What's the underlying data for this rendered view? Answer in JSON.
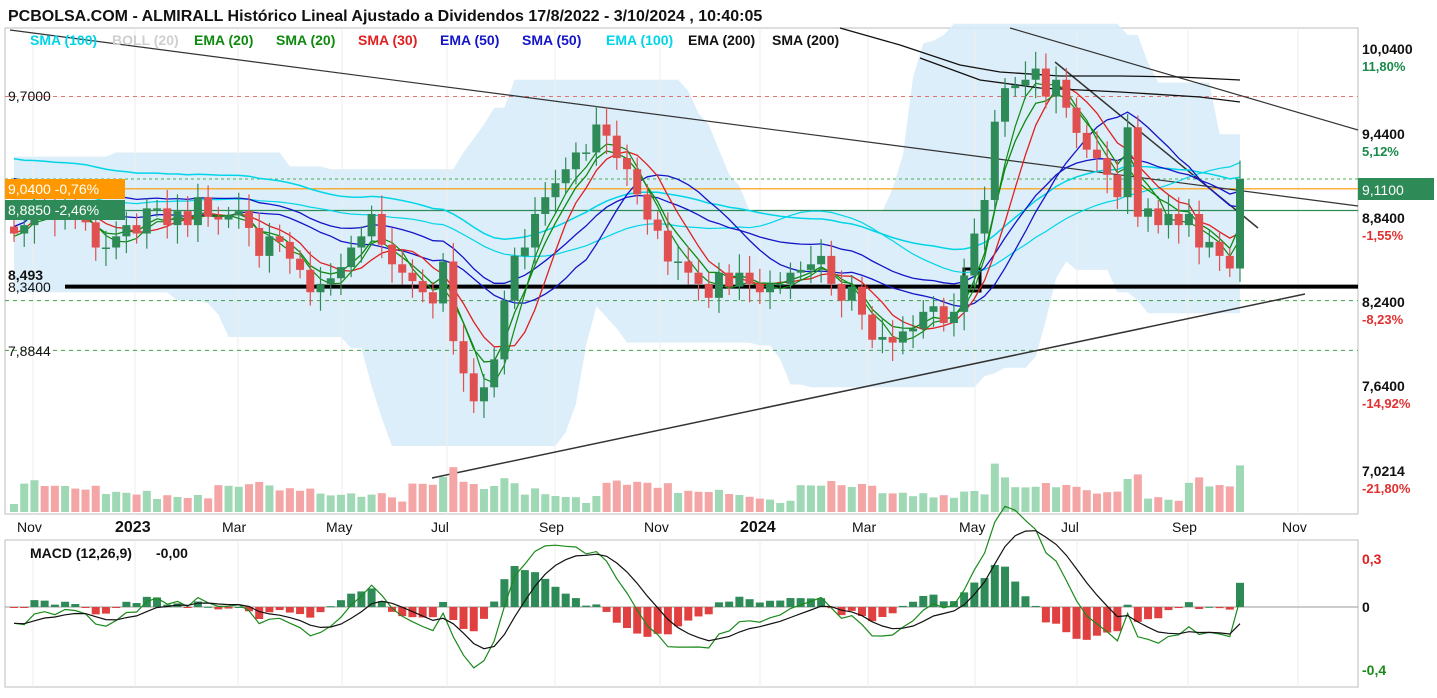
{
  "header": {
    "title": "PCBOLSA.COM - ALMIRALL Histórico Lineal Ajustado a Dividendos 17/8/2022 - 3/10/2024 , 10:40:05"
  },
  "legend": [
    {
      "label": "SMA (100)",
      "color": "#00d5e8"
    },
    {
      "label": "BOLL (20)",
      "color": "#cfcfcf"
    },
    {
      "label": "EMA (20)",
      "color": "#0e8a0e"
    },
    {
      "label": "SMA (20)",
      "color": "#0e8a0e"
    },
    {
      "label": "SMA (30)",
      "color": "#e02020"
    },
    {
      "label": "EMA (50)",
      "color": "#1414c8"
    },
    {
      "label": "SMA (50)",
      "color": "#1414c8"
    },
    {
      "label": "EMA (100)",
      "color": "#00d5e8"
    },
    {
      "label": "EMA (200)",
      "color": "#111111"
    },
    {
      "label": "SMA (200)",
      "color": "#111111"
    }
  ],
  "right_axis": {
    "ticks": [
      {
        "value": "10,0400",
        "pct": "11,80%",
        "pct_color": "#1a8a4a"
      },
      {
        "value": "9,4400",
        "pct": "5,12%",
        "pct_color": "#1a8a4a"
      },
      {
        "value": "8,8400",
        "pct": "-1,55%",
        "pct_color": "#e03030"
      },
      {
        "value": "8,2400",
        "pct": "-8,23%",
        "pct_color": "#e03030"
      },
      {
        "value": "7,6400",
        "pct": "-14,92%",
        "pct_color": "#e03030"
      },
      {
        "value": "7,0214",
        "pct": "-21,80%",
        "pct_color": "#e03030"
      }
    ],
    "current_price": "9,1100"
  },
  "left_labels": {
    "resistance": "9,7000",
    "orange_badge": "9,0400 -0,76%",
    "green_badge": "8,8850 -2,46%",
    "partial": "8,493",
    "support": "8,3400",
    "low": "7,8844"
  },
  "x_axis": {
    "months": [
      {
        "label": "Nov",
        "bold": false
      },
      {
        "label": "2023",
        "bold": true
      },
      {
        "label": "Mar",
        "bold": false
      },
      {
        "label": "May",
        "bold": false
      },
      {
        "label": "Jul",
        "bold": false
      },
      {
        "label": "Sep",
        "bold": false
      },
      {
        "label": "Nov",
        "bold": false
      },
      {
        "label": "2024",
        "bold": true
      },
      {
        "label": "Mar",
        "bold": false
      },
      {
        "label": "May",
        "bold": false
      },
      {
        "label": "Jul",
        "bold": false
      },
      {
        "label": "Sep",
        "bold": false
      },
      {
        "label": "Nov",
        "bold": false
      }
    ]
  },
  "macd": {
    "label": "MACD (12,26,9)",
    "value": "-0,00",
    "ticks": [
      {
        "label": "0,3",
        "color": "#e02020"
      },
      {
        "label": "0",
        "color": "#111111"
      },
      {
        "label": "-0,4",
        "color": "#1a8a1a"
      }
    ]
  },
  "colors": {
    "up": "#2e8b57",
    "down": "#e05050",
    "bollinger_fill": "#d6ebf8",
    "support_line": "#000000",
    "orange_level": "#ff9800"
  },
  "chart_data": {
    "type": "candlestick",
    "title": "PCBOLSA.COM - ALMIRALL Histórico Lineal Ajustado a Dividendos 17/8/2022 - 3/10/2024 , 10:40:05",
    "ylim": [
      6.9,
      10.25
    ],
    "series_close_weekly": [
      8.72,
      8.78,
      8.95,
      8.9,
      8.82,
      8.92,
      8.86,
      8.8,
      8.62,
      8.62,
      8.7,
      8.78,
      8.72,
      8.9,
      8.9,
      8.78,
      8.88,
      8.78,
      8.98,
      8.84,
      8.82,
      8.85,
      8.88,
      8.76,
      8.56,
      8.7,
      8.66,
      8.54,
      8.46,
      8.3,
      8.36,
      8.4,
      8.48,
      8.62,
      8.7,
      8.86,
      8.64,
      8.5,
      8.44,
      8.38,
      8.3,
      8.22,
      8.52,
      7.95,
      7.72,
      7.52,
      7.62,
      7.82,
      8.24,
      8.56,
      8.62,
      8.86,
      8.98,
      9.08,
      9.18,
      9.3,
      9.3,
      9.5,
      9.42,
      9.26,
      9.18,
      9.0,
      8.82,
      8.74,
      8.52,
      8.52,
      8.44,
      8.36,
      8.26,
      8.44,
      8.34,
      8.44,
      8.36,
      8.3,
      8.36,
      8.36,
      8.44,
      8.46,
      8.5,
      8.56,
      8.36,
      8.24,
      8.34,
      8.14,
      7.96,
      7.98,
      7.94,
      8.02,
      8.04,
      8.16,
      8.2,
      8.08,
      8.16,
      8.42,
      8.72,
      8.96,
      9.52,
      9.76,
      9.78,
      9.82,
      9.9,
      9.7,
      9.82,
      9.62,
      9.44,
      9.32,
      9.26,
      9.14,
      8.98,
      9.48,
      8.84,
      8.9,
      8.78,
      8.86,
      8.78,
      8.86,
      8.62,
      8.66,
      8.56,
      8.47,
      9.11
    ],
    "levels": {
      "resistance": 9.7,
      "orange": 9.04,
      "green": 8.885,
      "support": 8.34,
      "low": 7.8844,
      "current": 9.11
    },
    "x_months": [
      "Nov",
      "2023",
      "Mar",
      "May",
      "Jul",
      "Sep",
      "Nov",
      "2024",
      "Mar",
      "May",
      "Jul",
      "Sep",
      "Nov"
    ],
    "macd_ylim": [
      -0.45,
      0.35
    ]
  }
}
